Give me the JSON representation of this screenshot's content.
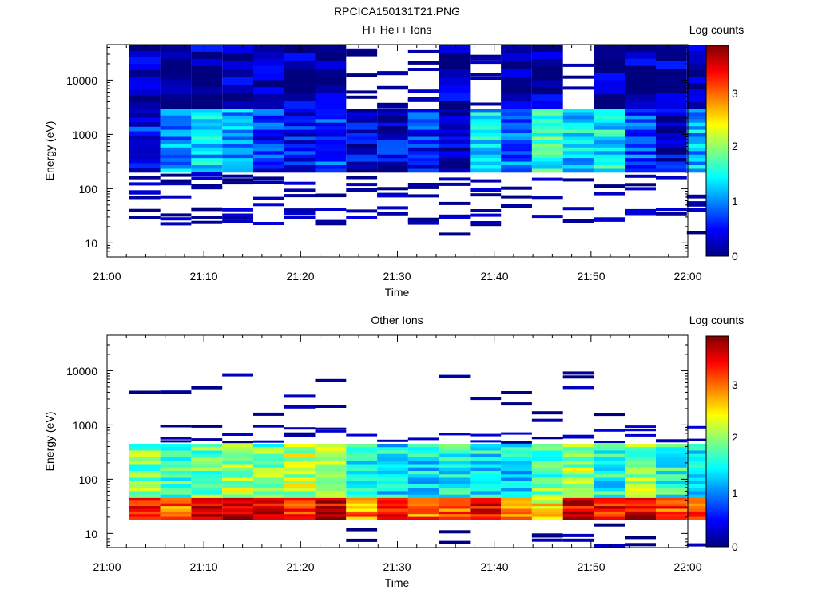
{
  "figure_title": "RPCICA150131T21.PNG",
  "chart_data": [
    {
      "type": "heatmap",
      "title": "H+ He++ Ions",
      "xlabel": "Time",
      "ylabel": "Energy (eV)",
      "xlim": [
        "21:00",
        "22:00"
      ],
      "xticks": [
        "21:00",
        "21:10",
        "21:20",
        "21:30",
        "21:40",
        "21:50",
        "22:00"
      ],
      "yscale": "log",
      "ylim": [
        5.5,
        45000
      ],
      "yticks": [
        "10",
        "100",
        "1000",
        "10000"
      ],
      "colorbar_label": "Log counts",
      "colorbar_ticks": [
        "0",
        "1",
        "2",
        "3"
      ],
      "colorbar_range": [
        0,
        3.8
      ],
      "colormap": [
        "#00007f",
        "#0000ff",
        "#007fff",
        "#00ffff",
        "#7fff7f",
        "#ffff00",
        "#ff7f00",
        "#ff0000",
        "#7f0000"
      ],
      "time_bins": 19,
      "first_bin_start_min": 2.3,
      "bin_width_min": 3.2,
      "bands": [
        {
          "e": [
            3000,
            45000
          ],
          "c": [
            10,
            9,
            9,
            8,
            9,
            8,
            8,
            6,
            6,
            7,
            8,
            6,
            8,
            9,
            3,
            9,
            9,
            8,
            10
          ],
          "v": 0.15
        },
        {
          "e": [
            200,
            3000
          ],
          "c": [
            14,
            18,
            18,
            18,
            18,
            18,
            18,
            18,
            18,
            18,
            18,
            18,
            18,
            18,
            18,
            18,
            18,
            18,
            18
          ],
          "v": [
            0.5,
            1.0,
            1.2,
            1.1,
            0.6,
            0.5,
            0.7,
            0.3,
            0.4,
            0.6,
            0.3,
            1.3,
            0.9,
            1.6,
            1.3,
            1.4,
            0.8,
            0.3,
            1.2
          ]
        },
        {
          "e": [
            60,
            200
          ],
          "c": [
            5,
            4,
            4,
            3,
            3,
            3,
            2,
            3,
            3,
            3,
            2,
            3,
            2,
            2,
            1,
            2,
            3,
            1,
            2
          ],
          "v": 0.15
        },
        {
          "e": [
            20,
            60
          ],
          "c": [
            2,
            3,
            4,
            4,
            2,
            4,
            3,
            2,
            2,
            3,
            3,
            4,
            2,
            1,
            2,
            2,
            3,
            2,
            3
          ],
          "v": 0.2
        },
        {
          "e": [
            5.5,
            20
          ],
          "c": [
            0,
            0,
            0,
            0,
            0,
            0,
            0,
            0,
            0,
            0,
            1,
            0,
            0,
            0,
            0,
            0,
            0,
            0,
            1
          ],
          "v": 0.05
        }
      ]
    },
    {
      "type": "heatmap",
      "title": "Other Ions",
      "xlabel": "Time",
      "ylabel": "Energy (eV)",
      "xlim": [
        "21:00",
        "22:00"
      ],
      "xticks": [
        "21:00",
        "21:10",
        "21:20",
        "21:30",
        "21:40",
        "21:50",
        "22:00"
      ],
      "yscale": "log",
      "ylim": [
        5.5,
        45000
      ],
      "yticks": [
        "10",
        "100",
        "1000",
        "10000"
      ],
      "colorbar_label": "Log counts",
      "colorbar_ticks": [
        "0",
        "1",
        "2",
        "3"
      ],
      "colorbar_range": [
        0,
        3.8
      ],
      "colormap": [
        "#00007f",
        "#0000ff",
        "#007fff",
        "#00ffff",
        "#7fff7f",
        "#ffff00",
        "#ff7f00",
        "#ff0000",
        "#7f0000"
      ],
      "time_bins": 19,
      "first_bin_start_min": 2.3,
      "bin_width_min": 3.2,
      "bands": [
        {
          "e": [
            1000,
            10000
          ],
          "c": [
            1,
            1,
            1,
            1,
            1,
            2,
            2,
            0,
            0,
            0,
            1,
            1,
            2,
            2,
            3,
            1,
            0,
            0,
            0
          ],
          "v": 0.1
        },
        {
          "e": [
            450,
            1000
          ],
          "c": [
            0,
            3,
            2,
            3,
            2,
            3,
            2,
            1,
            1,
            1,
            1,
            2,
            2,
            2,
            2,
            2,
            3,
            2,
            2
          ],
          "v": 0.2
        },
        {
          "e": [
            45,
            450
          ],
          "c": [
            16,
            16,
            16,
            16,
            16,
            16,
            16,
            16,
            16,
            16,
            16,
            16,
            16,
            16,
            16,
            16,
            16,
            16,
            16
          ],
          "v": [
            1.8,
            1.7,
            1.8,
            2.0,
            1.8,
            2.1,
            2.0,
            1.5,
            1.4,
            1.4,
            1.5,
            1.4,
            1.3,
            1.8,
            2.0,
            1.5,
            1.9,
            1.5,
            1.4
          ]
        },
        {
          "e": [
            18,
            45
          ],
          "c": [
            8,
            8,
            8,
            8,
            8,
            8,
            8,
            8,
            8,
            8,
            8,
            8,
            8,
            8,
            8,
            8,
            8,
            8,
            8
          ],
          "v": [
            3.4,
            2.9,
            3.5,
            3.6,
            3.4,
            3.3,
            3.4,
            2.8,
            3.2,
            2.9,
            3.0,
            3.3,
            2.7,
            2.4,
            3.4,
            3.3,
            3.5,
            3.1,
            2.9
          ]
        },
        {
          "e": [
            5.5,
            18
          ],
          "c": [
            0,
            0,
            0,
            0,
            0,
            0,
            0,
            2,
            0,
            0,
            2,
            0,
            0,
            3,
            2,
            2,
            2,
            0,
            1
          ],
          "v": 0.05
        }
      ]
    }
  ]
}
